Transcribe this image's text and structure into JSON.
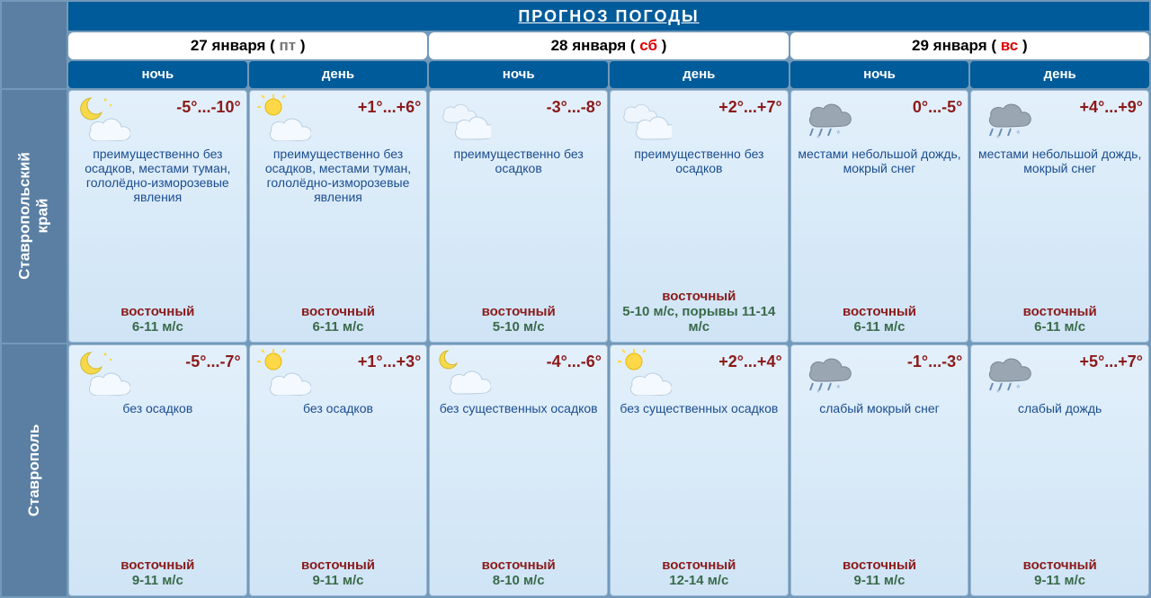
{
  "title": "ПРОГНОЗ ПОГОДЫ",
  "colors": {
    "page_bg": "#5a7fa3",
    "header_bg": "#005b9a",
    "cell_bg_top": "#e3f0fb",
    "cell_bg_bottom": "#cfe4f5",
    "temp_color": "#8b1a1a",
    "desc_color": "#1a4d8f",
    "wind_dir_color": "#8b1a1a",
    "wind_spd_color": "#3a6a4a",
    "weekend_color": "#d00"
  },
  "dates": [
    {
      "label": "27 января",
      "dow": "пт",
      "dow_class": "dow"
    },
    {
      "label": "28 января",
      "dow": "сб",
      "dow_class": "dow-sat"
    },
    {
      "label": "29 января",
      "dow": "вс",
      "dow_class": "dow-sun"
    }
  ],
  "phase_labels": {
    "night": "ночь",
    "day": "день"
  },
  "regions": [
    {
      "name": "Ставропольский\nкрай",
      "key": "region1"
    },
    {
      "name": "Ставрополь",
      "key": "region2"
    }
  ],
  "icons": {
    "night_clear_clouds": "night-clear-clouds",
    "day_sun_clouds": "day-sun-clouds",
    "clouds": "clouds",
    "night_clouds": "night-clouds",
    "rain_snow": "rain-snow"
  },
  "cells": {
    "region1": [
      {
        "icon": "night-clear-clouds",
        "temp": "-5°...-10°",
        "desc": "преимущественно без осадков, местами туман, гололёдно-изморозевые явления",
        "wind_dir": "восточный",
        "wind_spd": "6-11 м/с"
      },
      {
        "icon": "day-sun-clouds",
        "temp": "+1°...+6°",
        "desc": "преимущественно без осадков, местами туман, гололёдно-изморозевые явления",
        "wind_dir": "восточный",
        "wind_spd": "6-11 м/с"
      },
      {
        "icon": "clouds",
        "temp": "-3°...-8°",
        "desc": "преимущественно без осадков",
        "wind_dir": "восточный",
        "wind_spd": "5-10 м/с"
      },
      {
        "icon": "clouds",
        "temp": "+2°...+7°",
        "desc": "преимущественно без осадков",
        "wind_dir": "восточный",
        "wind_spd": "5-10 м/с, порывы 11-14 м/с"
      },
      {
        "icon": "rain-snow",
        "temp": "0°...-5°",
        "desc": "местами небольшой дождь, мокрый снег",
        "wind_dir": "восточный",
        "wind_spd": "6-11 м/с"
      },
      {
        "icon": "rain-snow",
        "temp": "+4°...+9°",
        "desc": "местами небольшой дождь, мокрый снег",
        "wind_dir": "восточный",
        "wind_spd": "6-11 м/с"
      }
    ],
    "region2": [
      {
        "icon": "night-clear-clouds",
        "temp": "-5°...-7°",
        "desc": "без осадков",
        "wind_dir": "восточный",
        "wind_spd": "9-11 м/с"
      },
      {
        "icon": "day-sun-clouds",
        "temp": "+1°...+3°",
        "desc": "без осадков",
        "wind_dir": "восточный",
        "wind_spd": "9-11 м/с"
      },
      {
        "icon": "night-clouds",
        "temp": "-4°...-6°",
        "desc": "без существенных осадков",
        "wind_dir": "восточный",
        "wind_spd": "8-10 м/с"
      },
      {
        "icon": "day-sun-clouds",
        "temp": "+2°...+4°",
        "desc": "без существенных осадков",
        "wind_dir": "восточный",
        "wind_spd": "12-14 м/с"
      },
      {
        "icon": "rain-snow",
        "temp": "-1°...-3°",
        "desc": "слабый мокрый снег",
        "wind_dir": "восточный",
        "wind_spd": "9-11 м/с"
      },
      {
        "icon": "rain-snow",
        "temp": "+5°...+7°",
        "desc": "слабый дождь",
        "wind_dir": "восточный",
        "wind_spd": "9-11 м/с"
      }
    ]
  }
}
